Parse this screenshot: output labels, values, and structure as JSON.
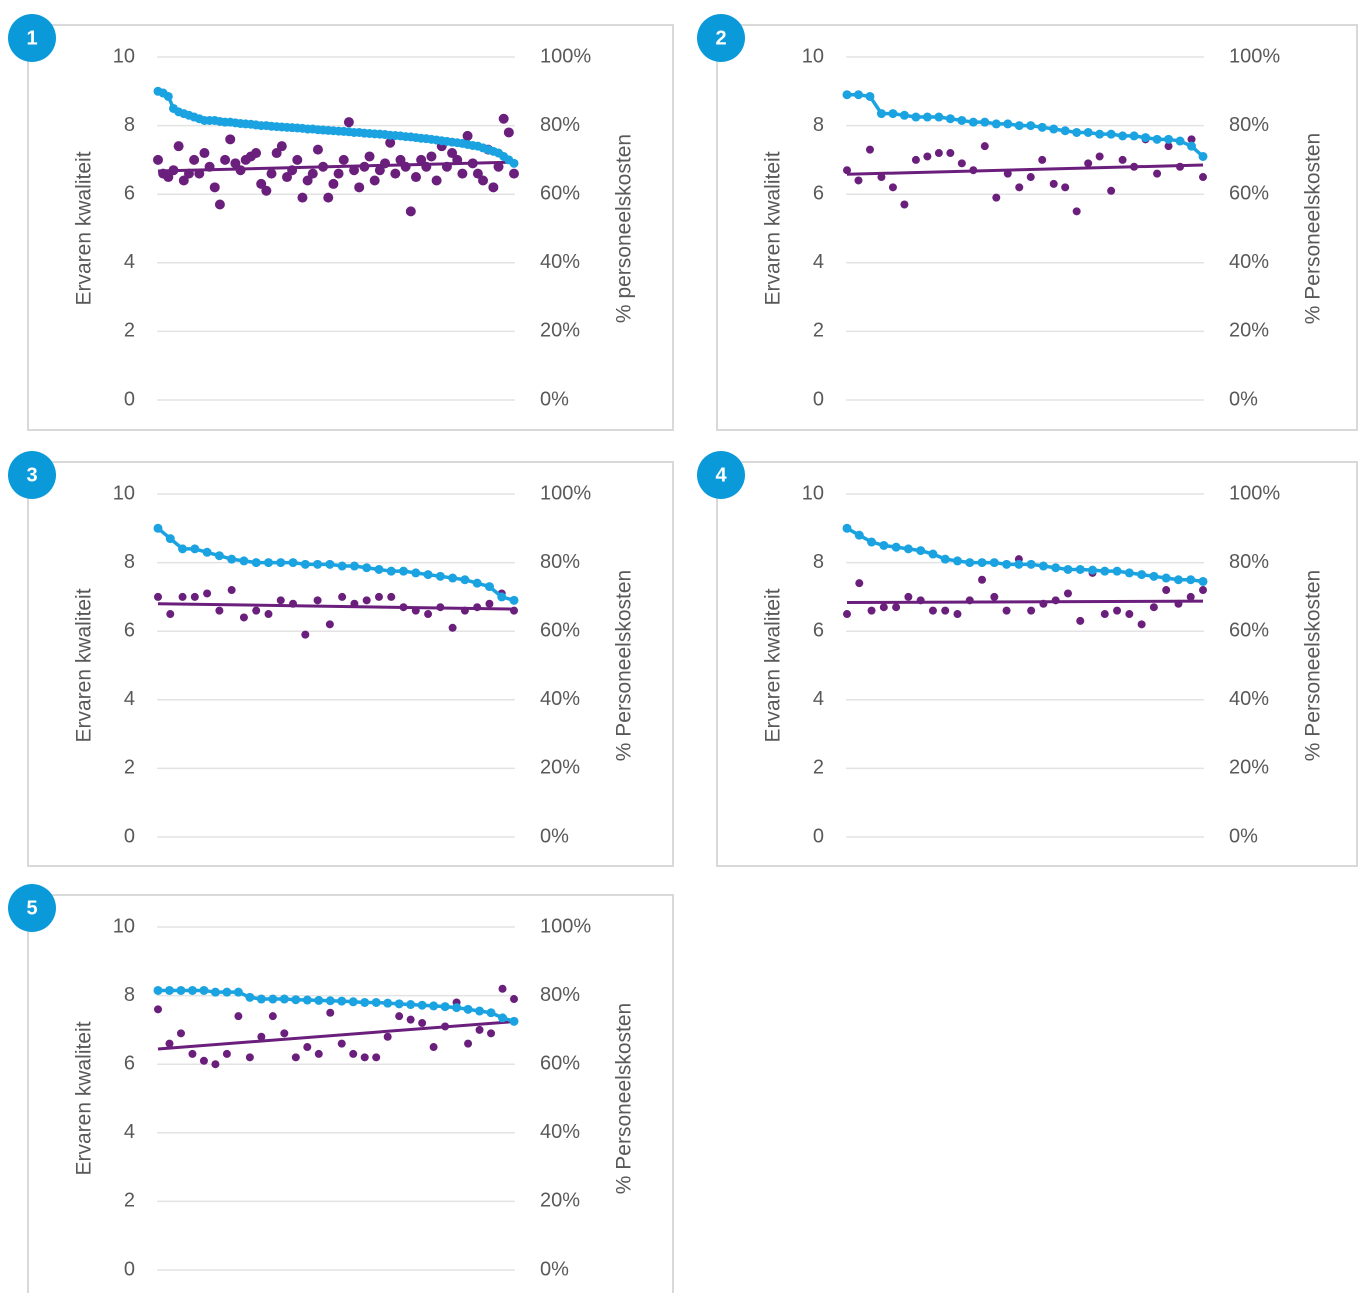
{
  "chart_data": [
    {
      "type": "combo",
      "label": "1",
      "ylabel": "Ervaren kwaliteit",
      "y2label": "% personeelskosten",
      "ylim": [
        0,
        10
      ],
      "yticks": [
        0,
        2,
        4,
        6,
        8,
        10
      ],
      "y2lim": [
        0,
        100
      ],
      "y2ticks": [
        {
          "value": 0,
          "label": "0%"
        },
        {
          "value": 20,
          "label": "20%"
        },
        {
          "value": 40,
          "label": "40%"
        },
        {
          "value": 60,
          "label": "60%"
        },
        {
          "value": 80,
          "label": "80%"
        },
        {
          "value": 100,
          "label": "100%"
        }
      ],
      "grid": true,
      "series": [
        {
          "type": "line",
          "color": "#1aa3e0",
          "values": [
            9.0,
            8.95,
            8.85,
            8.5,
            8.4,
            8.35,
            8.3,
            8.25,
            8.2,
            8.15,
            8.15,
            8.15,
            8.12,
            8.1,
            8.1,
            8.08,
            8.06,
            8.05,
            8.04,
            8.02,
            8.0,
            8.0,
            7.98,
            7.97,
            7.96,
            7.95,
            7.94,
            7.93,
            7.92,
            7.9,
            7.9,
            7.88,
            7.87,
            7.86,
            7.85,
            7.84,
            7.83,
            7.82,
            7.8,
            7.8,
            7.78,
            7.77,
            7.76,
            7.75,
            7.74,
            7.72,
            7.71,
            7.7,
            7.68,
            7.67,
            7.65,
            7.63,
            7.62,
            7.6,
            7.58,
            7.56,
            7.54,
            7.52,
            7.5,
            7.48,
            7.45,
            7.42,
            7.4,
            7.35,
            7.3,
            7.25,
            7.2,
            7.1,
            7.0,
            6.9
          ]
        },
        {
          "type": "scatter",
          "axis": "y2",
          "trendline": "linear",
          "color": "#6b1f7c",
          "values": [
            70,
            66,
            65,
            67,
            74,
            64,
            66,
            70,
            66,
            72,
            68,
            62,
            57,
            70,
            76,
            69,
            67,
            70,
            71,
            72,
            63,
            61,
            66,
            72,
            74,
            65,
            67,
            70,
            59,
            64,
            66,
            73,
            68,
            59,
            63,
            66,
            70,
            81,
            67,
            62,
            68,
            71,
            64,
            67,
            69,
            75,
            66,
            70,
            68,
            55,
            65,
            70,
            68,
            71,
            64,
            74,
            68,
            72,
            70,
            66,
            77,
            69,
            66,
            64,
            73,
            62,
            68,
            82,
            78,
            66
          ]
        }
      ]
    },
    {
      "type": "combo",
      "label": "2",
      "ylabel": "Ervaren kwaliteit",
      "y2label": "% Personeelskosten",
      "ylim": [
        0,
        10
      ],
      "yticks": [
        0,
        2,
        4,
        6,
        8,
        10
      ],
      "y2lim": [
        0,
        100
      ],
      "y2ticks": [
        {
          "value": 0,
          "label": "0%"
        },
        {
          "value": 20,
          "label": "20%"
        },
        {
          "value": 40,
          "label": "40%"
        },
        {
          "value": 60,
          "label": "60%"
        },
        {
          "value": 80,
          "label": "80%"
        },
        {
          "value": 100,
          "label": "100%"
        }
      ],
      "grid": true,
      "series": [
        {
          "type": "line",
          "color": "#1aa3e0",
          "values": [
            8.9,
            8.9,
            8.85,
            8.35,
            8.35,
            8.3,
            8.25,
            8.25,
            8.25,
            8.2,
            8.15,
            8.1,
            8.1,
            8.05,
            8.05,
            8.0,
            8.0,
            7.95,
            7.9,
            7.85,
            7.8,
            7.8,
            7.75,
            7.75,
            7.7,
            7.7,
            7.65,
            7.6,
            7.6,
            7.55,
            7.4,
            7.1
          ]
        },
        {
          "type": "scatter",
          "axis": "y2",
          "trendline": "linear",
          "color": "#6b1f7c",
          "values": [
            67,
            64,
            73,
            65,
            62,
            57,
            70,
            71,
            72,
            72,
            69,
            67,
            74,
            59,
            66,
            62,
            65,
            70,
            63,
            62,
            55,
            69,
            71,
            61,
            70,
            68,
            76,
            66,
            74,
            68,
            76,
            65
          ]
        }
      ]
    },
    {
      "type": "combo",
      "label": "3",
      "ylabel": "Ervaren kwaliteit",
      "y2label": "% Personeelskosten",
      "ylim": [
        0,
        10
      ],
      "yticks": [
        0,
        2,
        4,
        6,
        8,
        10
      ],
      "y2lim": [
        0,
        100
      ],
      "y2ticks": [
        {
          "value": 0,
          "label": "0%"
        },
        {
          "value": 20,
          "label": "20%"
        },
        {
          "value": 40,
          "label": "40%"
        },
        {
          "value": 60,
          "label": "60%"
        },
        {
          "value": 80,
          "label": "80%"
        },
        {
          "value": 100,
          "label": "100%"
        }
      ],
      "grid": true,
      "series": [
        {
          "type": "line",
          "color": "#1aa3e0",
          "values": [
            9.0,
            8.7,
            8.4,
            8.4,
            8.3,
            8.2,
            8.1,
            8.05,
            8.0,
            8.0,
            8.0,
            8.0,
            7.95,
            7.95,
            7.95,
            7.9,
            7.9,
            7.85,
            7.8,
            7.75,
            7.75,
            7.7,
            7.65,
            7.6,
            7.55,
            7.5,
            7.4,
            7.3,
            7.0,
            6.9
          ]
        },
        {
          "type": "scatter",
          "axis": "y2",
          "trendline": "linear",
          "color": "#6b1f7c",
          "values": [
            70,
            65,
            70,
            70,
            71,
            66,
            72,
            64,
            66,
            65,
            69,
            68,
            59,
            69,
            62,
            70,
            68,
            69,
            70,
            70,
            67,
            66,
            65,
            67,
            61,
            66,
            67,
            68,
            71,
            66
          ]
        }
      ]
    },
    {
      "type": "combo",
      "label": "4",
      "ylabel": "Ervaren kwaliteit",
      "y2label": "% Personeelskosten",
      "ylim": [
        0,
        10
      ],
      "yticks": [
        0,
        2,
        4,
        6,
        8,
        10
      ],
      "y2lim": [
        0,
        100
      ],
      "y2ticks": [
        {
          "value": 0,
          "label": "0%"
        },
        {
          "value": 20,
          "label": "20%"
        },
        {
          "value": 40,
          "label": "40%"
        },
        {
          "value": 60,
          "label": "60%"
        },
        {
          "value": 80,
          "label": "80%"
        },
        {
          "value": 100,
          "label": "100%"
        }
      ],
      "grid": true,
      "series": [
        {
          "type": "line",
          "color": "#1aa3e0",
          "values": [
            9.0,
            8.8,
            8.6,
            8.5,
            8.45,
            8.4,
            8.35,
            8.25,
            8.1,
            8.05,
            8.0,
            8.0,
            8.0,
            7.95,
            7.95,
            7.95,
            7.9,
            7.85,
            7.8,
            7.8,
            7.78,
            7.75,
            7.75,
            7.7,
            7.65,
            7.6,
            7.55,
            7.5,
            7.5,
            7.45
          ]
        },
        {
          "type": "scatter",
          "axis": "y2",
          "trendline": "linear",
          "color": "#6b1f7c",
          "values": [
            65,
            74,
            66,
            67,
            67,
            70,
            69,
            66,
            66,
            65,
            69,
            75,
            70,
            66,
            81,
            66,
            68,
            69,
            71,
            63,
            77,
            65,
            66,
            65,
            62,
            67,
            72,
            68,
            70,
            72
          ]
        }
      ]
    },
    {
      "type": "combo",
      "label": "5",
      "ylabel": "Ervaren kwaliteit",
      "y2label": "% Personeelskosten",
      "ylim": [
        0,
        10
      ],
      "yticks": [
        0,
        2,
        4,
        6,
        8,
        10
      ],
      "y2lim": [
        0,
        100
      ],
      "y2ticks": [
        {
          "value": 0,
          "label": "0%"
        },
        {
          "value": 20,
          "label": "20%"
        },
        {
          "value": 40,
          "label": "40%"
        },
        {
          "value": 60,
          "label": "60%"
        },
        {
          "value": 80,
          "label": "80%"
        },
        {
          "value": 100,
          "label": "100%"
        }
      ],
      "grid": true,
      "series": [
        {
          "type": "line",
          "color": "#1aa3e0",
          "values": [
            8.15,
            8.15,
            8.15,
            8.15,
            8.15,
            8.1,
            8.1,
            8.1,
            7.95,
            7.9,
            7.9,
            7.9,
            7.88,
            7.87,
            7.86,
            7.85,
            7.84,
            7.82,
            7.8,
            7.8,
            7.78,
            7.76,
            7.74,
            7.72,
            7.7,
            7.68,
            7.65,
            7.6,
            7.55,
            7.5,
            7.35,
            7.25
          ]
        },
        {
          "type": "scatter",
          "axis": "y2",
          "trendline": "linear",
          "color": "#6b1f7c",
          "values": [
            76,
            66,
            69,
            63,
            61,
            60,
            63,
            74,
            62,
            68,
            74,
            69,
            62,
            65,
            63,
            75,
            66,
            63,
            62,
            62,
            68,
            74,
            73,
            72,
            65,
            71,
            78,
            66,
            70,
            69,
            82,
            79
          ]
        }
      ]
    }
  ]
}
